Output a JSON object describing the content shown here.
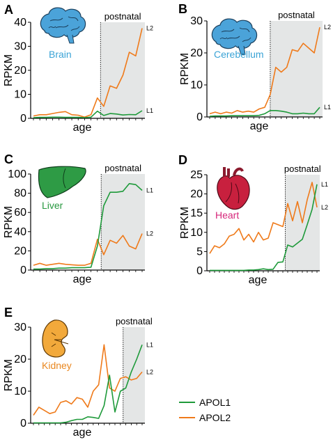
{
  "colors": {
    "apol1": "#1e9a3a",
    "apol2": "#ef7a1a",
    "shade": "#e4e6e6",
    "brain_icon": "#4ba3d9",
    "liver_icon": "#2e9b45",
    "heart_icon": "#c8203e",
    "kidney_icon": "#f2a93b"
  },
  "legend": [
    {
      "label": "APOL1",
      "color": "#1e9a3a"
    },
    {
      "label": "APOL2",
      "color": "#ef7a1a"
    }
  ],
  "chart_data": [
    {
      "type": "line",
      "panel": "A",
      "organ": "Brain",
      "organ_color": "#3aa3d6",
      "icon": "brain-icon",
      "region_label": "postnatal",
      "xlabel": "age",
      "ylabel": "RPKM",
      "ylim": [
        0,
        40
      ],
      "yticks": [
        0,
        10,
        20,
        30,
        40
      ],
      "n_points": 18,
      "postnatal_start": 10.5,
      "series": [
        {
          "name": "APOL1",
          "end_label": "L1",
          "color": "#1e9a3a",
          "values": [
            0.3,
            0.4,
            0.4,
            0.5,
            0.5,
            0.4,
            0.4,
            0.4,
            0.3,
            0.5,
            3.0,
            1.2,
            2.0,
            1.8,
            1.4,
            1.6,
            1.5,
            3.2
          ]
        },
        {
          "name": "APOL2",
          "end_label": "L2",
          "color": "#ef7a1a",
          "values": [
            1.0,
            1.5,
            1.5,
            2.0,
            2.5,
            2.8,
            1.5,
            1.3,
            0.5,
            1.5,
            8.5,
            5.0,
            13.5,
            12.5,
            18.0,
            27.5,
            26.0,
            37.5
          ]
        }
      ]
    },
    {
      "type": "line",
      "panel": "B",
      "organ": "Cerebellum",
      "organ_color": "#3aa3d6",
      "icon": "brain-icon",
      "region_label": "postnatal",
      "xlabel": "age",
      "ylabel": "RPKM",
      "ylim": [
        0,
        30
      ],
      "yticks": [
        0,
        10,
        20,
        30
      ],
      "n_points": 21,
      "postnatal_start": 11,
      "series": [
        {
          "name": "APOL1",
          "end_label": "L1",
          "color": "#1e9a3a",
          "values": [
            0.2,
            0.3,
            0.3,
            0.3,
            0.4,
            0.4,
            0.4,
            0.4,
            0.4,
            0.5,
            1.0,
            2.0,
            2.0,
            1.8,
            1.5,
            1.0,
            1.0,
            1.2,
            1.0,
            1.0,
            3.0
          ]
        },
        {
          "name": "APOL2",
          "end_label": "L2",
          "color": "#ef7a1a",
          "values": [
            1.0,
            1.5,
            1.0,
            1.5,
            1.2,
            2.0,
            1.5,
            1.8,
            1.5,
            2.5,
            3.0,
            7.0,
            15.5,
            14.0,
            15.5,
            21.0,
            20.5,
            23.0,
            21.5,
            20.0,
            28.0
          ]
        }
      ]
    },
    {
      "type": "line",
      "panel": "C",
      "organ": "Liver",
      "organ_color": "#27983f",
      "icon": "liver-icon",
      "region_label": "postnatal",
      "xlabel": "age",
      "ylabel": "RPKM",
      "ylim": [
        0,
        100
      ],
      "yticks": [
        0,
        20,
        40,
        60,
        80,
        100
      ],
      "n_points": 18,
      "postnatal_start": 10.6,
      "series": [
        {
          "name": "APOL1",
          "end_label": "L1",
          "color": "#1e9a3a",
          "values": [
            1.0,
            1.0,
            1.5,
            1.5,
            2.0,
            2.0,
            2.5,
            2.5,
            2.5,
            3.0,
            25.0,
            67.0,
            81.0,
            81.0,
            82.0,
            90.0,
            89.0,
            83.0
          ]
        },
        {
          "name": "APOL2",
          "end_label": "L2",
          "color": "#ef7a1a",
          "values": [
            5.0,
            7.0,
            5.0,
            6.0,
            7.0,
            6.0,
            5.5,
            5.0,
            5.0,
            7.0,
            32.0,
            16.0,
            31.0,
            28.0,
            36.0,
            25.0,
            22.0,
            38.0
          ]
        }
      ]
    },
    {
      "type": "line",
      "panel": "D",
      "organ": "Heart",
      "organ_color": "#d6267a",
      "icon": "heart-icon",
      "region_label": "postnatal",
      "xlabel": "age",
      "ylabel": "RPKM",
      "ylim": [
        0,
        25
      ],
      "yticks": [
        0,
        5,
        10,
        15,
        20,
        25
      ],
      "n_points": 23,
      "postnatal_start": 15.5,
      "series": [
        {
          "name": "APOL1",
          "end_label": "L1",
          "color": "#1e9a3a",
          "values": [
            0.1,
            0.1,
            0.1,
            0.1,
            0.1,
            0.1,
            0.1,
            0.1,
            0.2,
            0.2,
            0.3,
            0.5,
            0.3,
            0.4,
            2.2,
            2.3,
            6.7,
            6.2,
            7.2,
            8.2,
            12.0,
            16.0,
            22.5
          ]
        },
        {
          "name": "APOL2",
          "end_label": "L2",
          "color": "#ef7a1a",
          "values": [
            4.5,
            6.5,
            6.0,
            7.0,
            9.0,
            9.5,
            11.0,
            8.0,
            9.5,
            7.5,
            10.0,
            8.0,
            8.5,
            12.5,
            12.0,
            11.5,
            17.5,
            13.0,
            18.0,
            12.5,
            18.5,
            23.0,
            16.5
          ]
        }
      ]
    },
    {
      "type": "line",
      "panel": "E",
      "organ": "Kidney",
      "organ_color": "#e9871f",
      "icon": "kidney-icon",
      "region_label": "postnatal",
      "xlabel": "age",
      "ylabel": "RPKM",
      "ylim": [
        0,
        30
      ],
      "yticks": [
        0,
        10,
        20,
        30
      ],
      "n_points": 21,
      "postnatal_start": 16.5,
      "series": [
        {
          "name": "APOL1",
          "end_label": "L1",
          "color": "#1e9a3a",
          "values": [
            0.1,
            0.1,
            0.1,
            0.1,
            0.1,
            0.1,
            0.3,
            0.8,
            1.2,
            1.2,
            2.0,
            1.8,
            1.5,
            5.5,
            15.0,
            3.5,
            10.0,
            11.0,
            16.0,
            20.0,
            24.5
          ]
        },
        {
          "name": "APOL2",
          "end_label": "L2",
          "color": "#ef7a1a",
          "values": [
            2.5,
            5.0,
            4.0,
            3.0,
            3.5,
            6.5,
            7.0,
            6.0,
            8.0,
            7.5,
            5.0,
            10.0,
            12.0,
            24.5,
            11.0,
            10.0,
            14.0,
            14.5,
            13.5,
            14.0,
            16.0
          ]
        }
      ]
    }
  ]
}
